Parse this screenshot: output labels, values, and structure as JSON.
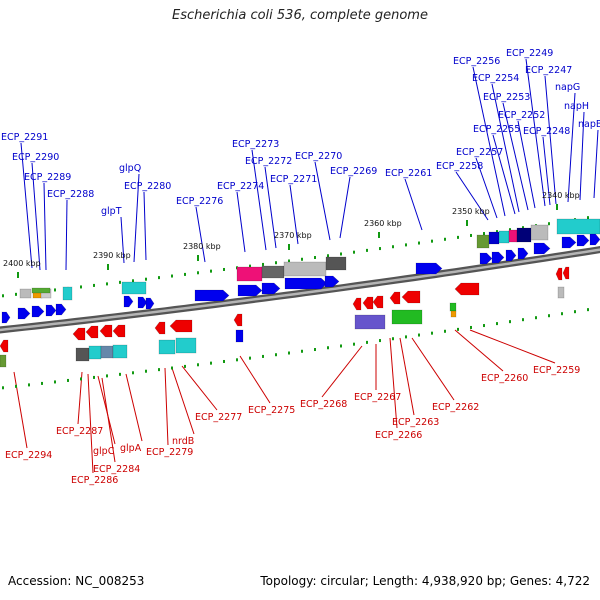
{
  "title": "Escherichia coli 536, complete genome",
  "footer": {
    "accession": "Accession: NC_008253",
    "topology": "Topology: circular; Length: 4,938,920 bp; Genes: 4,722"
  },
  "colors": {
    "forward_label": "#0000cc",
    "reverse_label": "#cc0000",
    "forward_gene": "#0000ee",
    "reverse_gene": "#ee0000",
    "backbone": "#777777",
    "tick": "#119911"
  },
  "ticks": [
    {
      "label": "2400 kbp"
    },
    {
      "label": "2390 kbp"
    },
    {
      "label": "2380 kbp"
    },
    {
      "label": "2370 kbp"
    },
    {
      "label": "2360 kbp"
    },
    {
      "label": "2350 kbp"
    },
    {
      "label": "2340 kbp"
    }
  ],
  "forward_labels": [
    "ECP_2291",
    "ECP_2290",
    "ECP_2289",
    "ECP_2288",
    "glpT",
    "glpQ",
    "ECP_2280",
    "ECP_2276",
    "ECP_2274",
    "ECP_2273",
    "ECP_2272",
    "ECP_2271",
    "ECP_2270",
    "ECP_2269",
    "ECP_2261",
    "ECP_2258",
    "ECP_2257",
    "ECP_2256",
    "ECP_2255",
    "ECP_2254",
    "ECP_2253",
    "ECP_2252",
    "ECP_2249",
    "ECP_2248",
    "ECP_2247",
    "napG",
    "napH",
    "napB"
  ],
  "reverse_labels": [
    "ECP_2294",
    "ECP_2287",
    "ECP_2286",
    "glpC",
    "ECP_2284",
    "glpA",
    "ECP_2279",
    "nrdB",
    "ECP_2277",
    "ECP_2275",
    "ECP_2268",
    "ECP_2267",
    "ECP_2266",
    "ECP_2263",
    "ECP_2262",
    "ECP_2260",
    "ECP_2259"
  ]
}
